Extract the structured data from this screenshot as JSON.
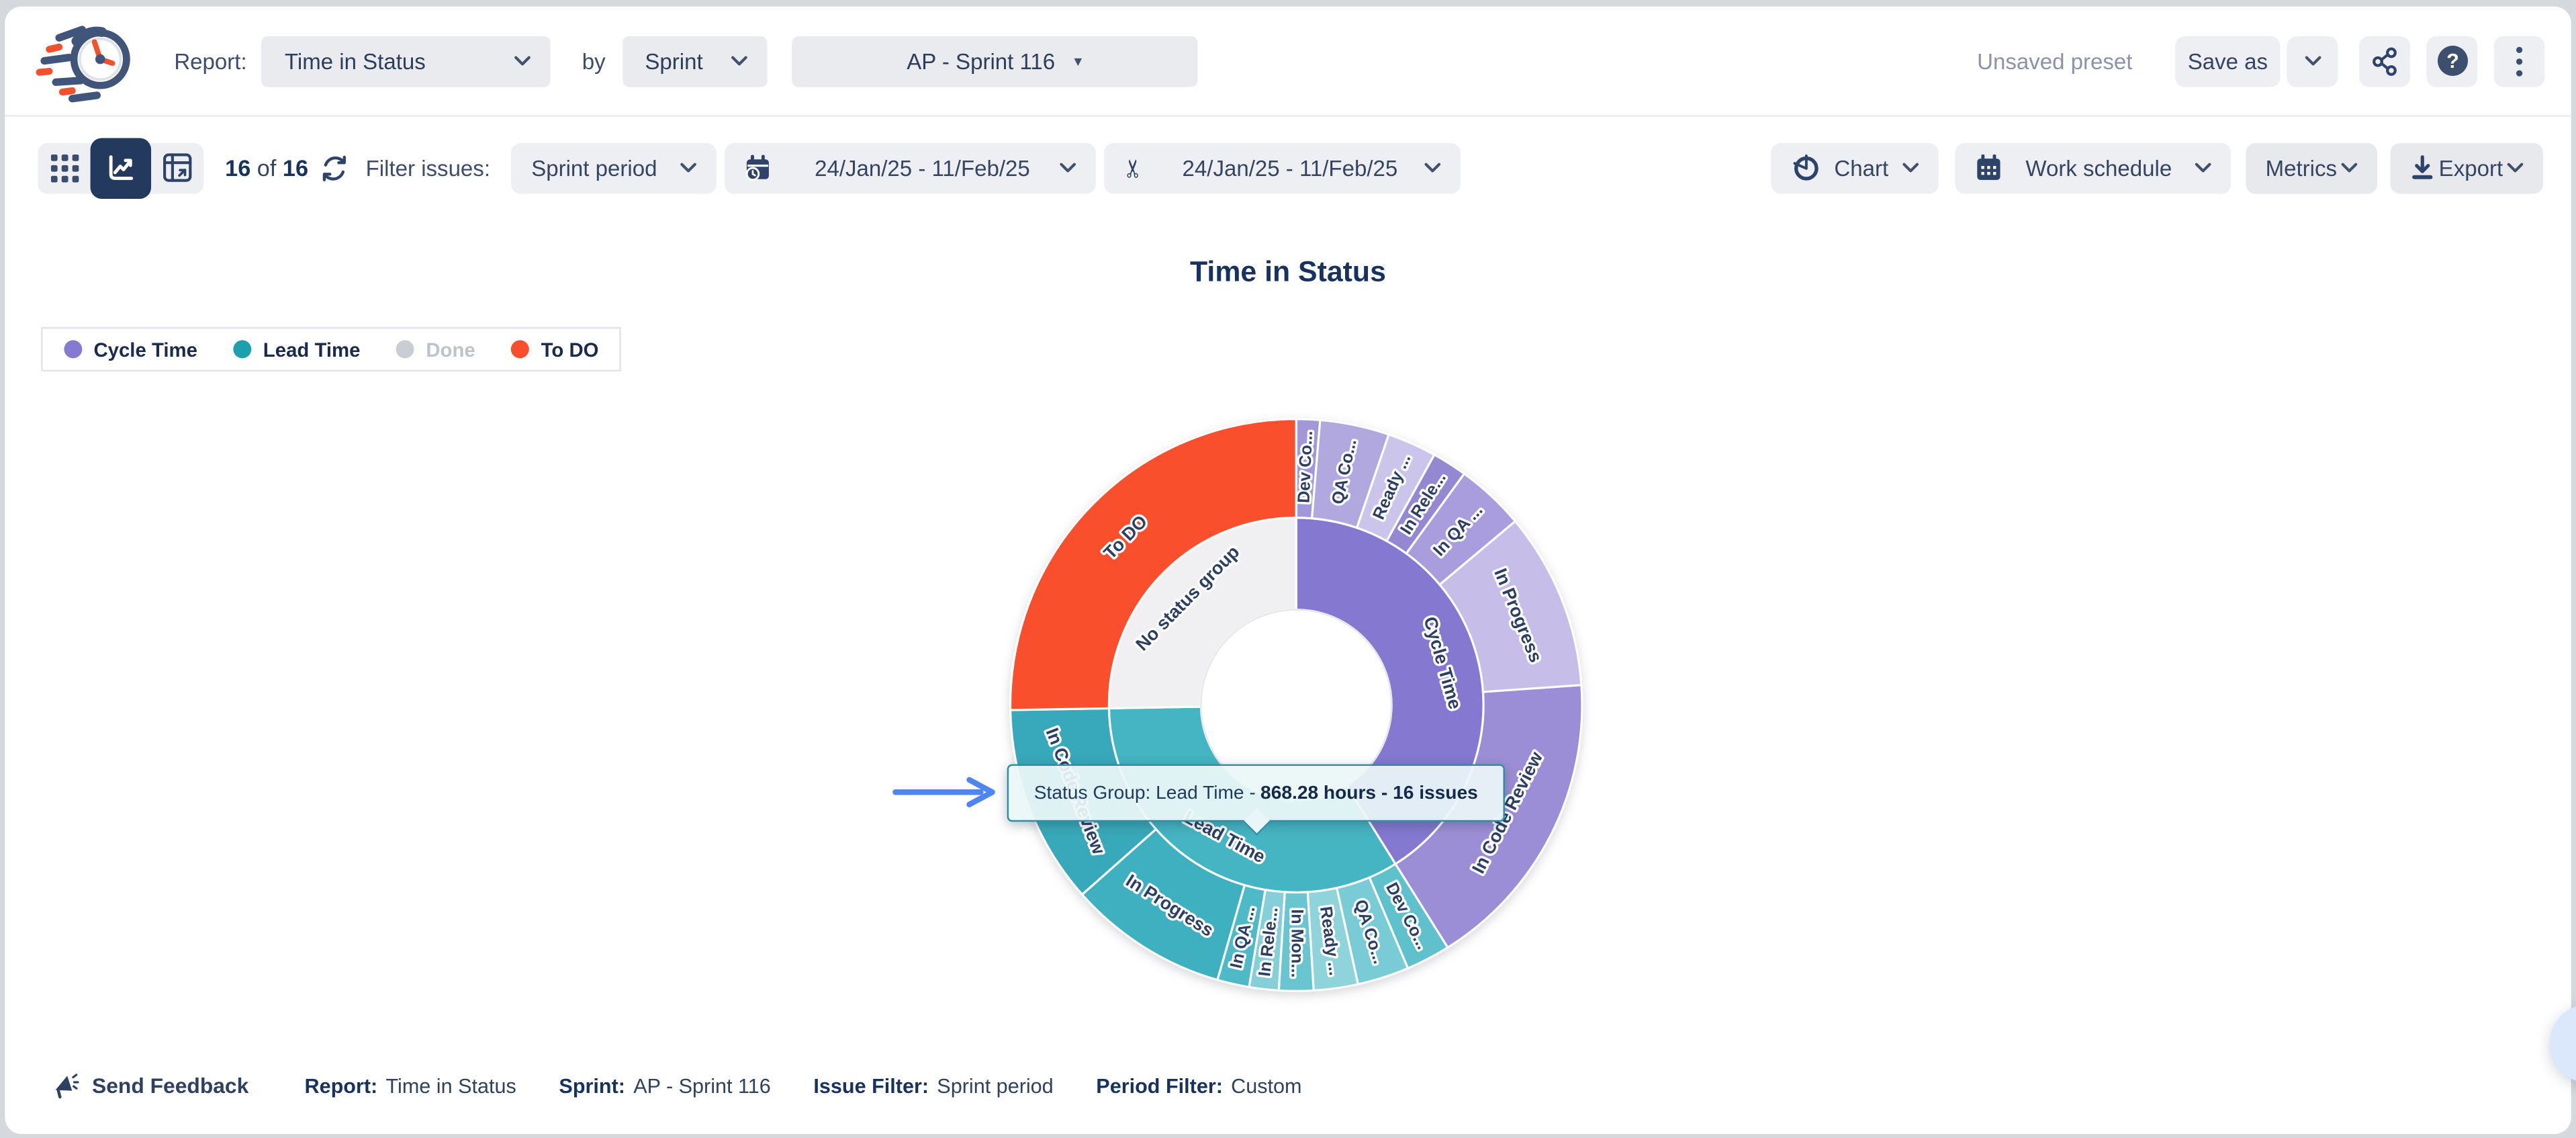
{
  "header": {
    "report_label": "Report:",
    "report_select": "Time in Status",
    "by_label": "by",
    "group_select": "Sprint",
    "sprint_select": "AP - Sprint 116",
    "preset_status": "Unsaved preset",
    "save_as_label": "Save as"
  },
  "toolbar": {
    "count_current": "16",
    "count_of": "of",
    "count_total": "16",
    "filter_label": "Filter issues:",
    "issue_filter_value": "Sprint period",
    "period_range": "24/Jan/25 - 11/Feb/25",
    "trim_range": "24/Jan/25 - 11/Feb/25",
    "chart_button": "Chart",
    "work_schedule_button": "Work schedule",
    "metrics_button": "Metrics",
    "export_button": "Export"
  },
  "chart": {
    "title": "Time in Status",
    "legend": [
      {
        "label": "Cycle Time",
        "color": "#8579d2",
        "disabled": false
      },
      {
        "label": "Lead Time",
        "color": "#1e9fae",
        "disabled": false
      },
      {
        "label": "Done",
        "color": "#c9cdd4",
        "disabled": true
      },
      {
        "label": "To DO",
        "color": "#f94f2c",
        "disabled": false
      }
    ],
    "tooltip": {
      "prefix": "Status Group: Lead Time -",
      "bold": "868.28 hours - 16 issues"
    }
  },
  "chart_data": {
    "type": "sunburst",
    "title": "Time in Status",
    "unit": "hours",
    "angle_convention": "degrees clockwise from 12 o'clock",
    "radii": {
      "hole": 58,
      "inner": 114,
      "outer": 174
    },
    "visible_values": {
      "Lead Time": {
        "hours": 868.28,
        "issues": 16
      }
    },
    "groups": [
      {
        "label": "Cycle Time",
        "color": "#8478d0",
        "start": 0,
        "end": 148,
        "children": [
          {
            "label": "Dev Co...",
            "start": 0,
            "end": 4.8,
            "color": "#a297d8"
          },
          {
            "label": "QA Co...",
            "start": 4.8,
            "end": 18.9,
            "color": "#b2a8e0"
          },
          {
            "label": "Ready ...",
            "start": 18.9,
            "end": 28.9,
            "color": "#cbc4eb"
          },
          {
            "label": "In Rele...",
            "start": 28.9,
            "end": 36,
            "color": "#9588d3"
          },
          {
            "label": "In QA ...",
            "start": 36,
            "end": 50,
            "color": "#a99dde"
          },
          {
            "label": "In Progress",
            "start": 50,
            "end": 86,
            "color": "#c6bee9"
          },
          {
            "label": "In Code Review",
            "start": 86,
            "end": 148,
            "color": "#9b8ed6"
          }
        ]
      },
      {
        "label": "Lead Time",
        "color": "#45b4c3",
        "start": 148,
        "end": 269,
        "children": [
          {
            "label": "Dev Co...",
            "start": 148,
            "end": 157,
            "color": "#5ec1cc"
          },
          {
            "label": "QA Co...",
            "start": 157,
            "end": 167.5,
            "color": "#79ccd5"
          },
          {
            "label": "Ready ...",
            "start": 167.5,
            "end": 176.5,
            "color": "#8fd3db"
          },
          {
            "label": "In Mon...",
            "start": 176.5,
            "end": 183.5,
            "color": "#69c5d0"
          },
          {
            "label": "In Rele...",
            "start": 183.5,
            "end": 189.5,
            "color": "#84cfd8"
          },
          {
            "label": "In QA ...",
            "start": 189.5,
            "end": 196,
            "color": "#4fbac7"
          },
          {
            "label": "In Progress",
            "start": 196,
            "end": 228.5,
            "color": "#3fb0c0"
          },
          {
            "label": "In Code Review",
            "start": 228.5,
            "end": 269,
            "color": "#38a9ba"
          }
        ]
      },
      {
        "label": "No status group",
        "color": "#f0f0f3",
        "start": 269,
        "end": 360,
        "children": [
          {
            "label": "To DO",
            "start": 269,
            "end": 360,
            "color": "#fa4f2d"
          }
        ]
      }
    ]
  },
  "footer": {
    "send_feedback": "Send Feedback",
    "meta": [
      {
        "label": "Report:",
        "value": "Time in Status"
      },
      {
        "label": "Sprint:",
        "value": "AP - Sprint 116"
      },
      {
        "label": "Issue Filter:",
        "value": "Sprint period"
      },
      {
        "label": "Period Filter:",
        "value": "Custom"
      }
    ]
  }
}
